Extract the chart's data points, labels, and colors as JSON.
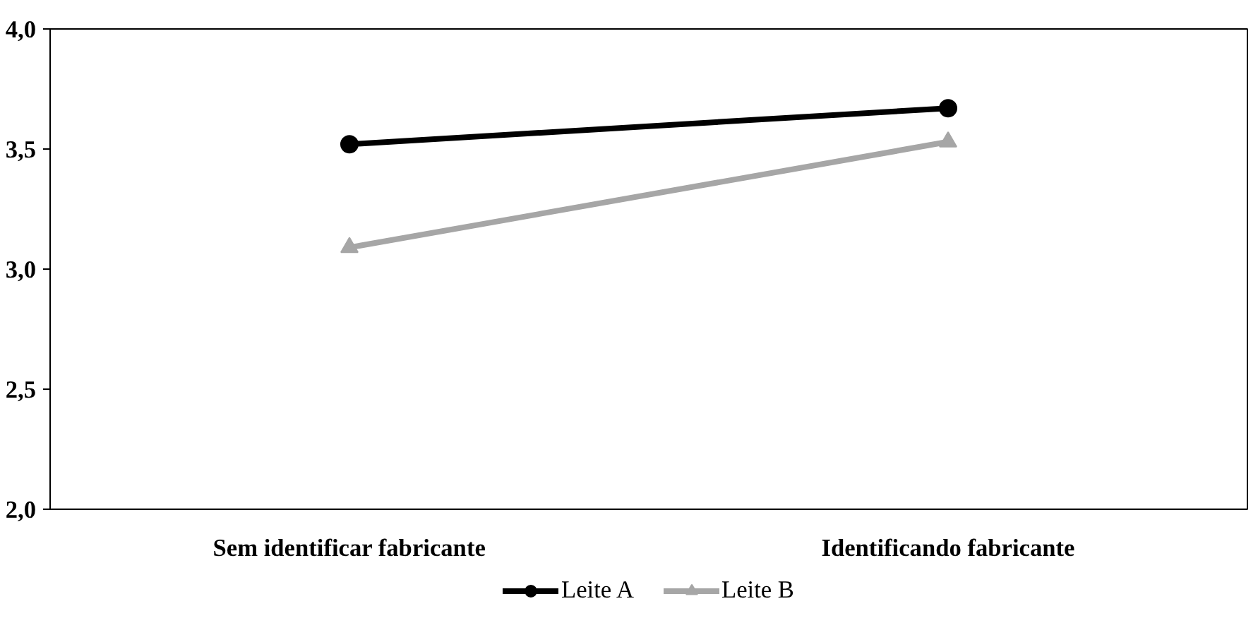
{
  "chart_data": {
    "type": "line",
    "categories": [
      "Sem identificar fabricante",
      "Identificando fabricante"
    ],
    "series": [
      {
        "name": "Leite A",
        "color": "#000000",
        "marker": "circle",
        "values": [
          3.52,
          3.67
        ]
      },
      {
        "name": "Leite B",
        "color": "#a6a6a6",
        "marker": "triangle",
        "values": [
          3.09,
          3.53
        ]
      }
    ],
    "ylim": [
      2,
      4
    ],
    "yticks": [
      {
        "value": 2,
        "label": "2,0"
      },
      {
        "value": 2.5,
        "label": "2,5"
      },
      {
        "value": 3,
        "label": "3,0"
      },
      {
        "value": 3.5,
        "label": "3,5"
      },
      {
        "value": 4,
        "label": "4,0"
      }
    ],
    "grid": false,
    "legend": "bottom",
    "line_style": "solid"
  }
}
